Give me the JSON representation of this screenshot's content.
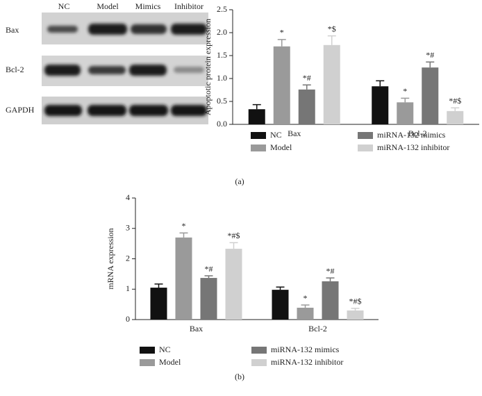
{
  "blot": {
    "columns": [
      "NC",
      "Model",
      "Mimics",
      "Inhibitor"
    ],
    "rows": [
      "Bax",
      "Bcl-2",
      "GAPDH"
    ]
  },
  "chart_data": [
    {
      "type": "bar",
      "panel": "(a)",
      "ylabel": "Apoptotic protein expression",
      "categories": [
        "Bax",
        "Bcl-2"
      ],
      "ylim": [
        0,
        2.5
      ],
      "yticks": [
        {
          "value": 0,
          "label": "0.0"
        },
        0.5,
        {
          "value": 1,
          "label": "1.0"
        },
        1.5,
        {
          "value": 2,
          "label": "2.0"
        },
        2.5
      ],
      "legend": "bottom",
      "series": [
        {
          "name": "NC",
          "color": "#111111",
          "values": [
            0.33,
            0.83
          ],
          "errors": [
            0.1,
            0.12
          ],
          "annotations": [
            null,
            null
          ]
        },
        {
          "name": "Model",
          "color": "#9a9a9a",
          "values": [
            1.7,
            0.48
          ],
          "errors": [
            0.15,
            0.09
          ],
          "annotations": [
            "*",
            "*"
          ]
        },
        {
          "name": "miRNA-132 mimics",
          "color": "#767676",
          "values": [
            0.76,
            1.24
          ],
          "errors": [
            0.1,
            0.12
          ],
          "annotations": [
            "*#",
            "*#"
          ]
        },
        {
          "name": "miRNA-132 inhibitor",
          "color": "#d0d0d0",
          "values": [
            1.73,
            0.29
          ],
          "errors": [
            0.2,
            0.07
          ],
          "annotations": [
            "*$",
            "*#$"
          ]
        }
      ]
    },
    {
      "type": "bar",
      "panel": "(b)",
      "ylabel": "mRNA expression",
      "categories": [
        "Bax",
        "Bcl-2"
      ],
      "ylim": [
        0,
        4
      ],
      "yticks": [
        0,
        1,
        2,
        3,
        4
      ],
      "legend": "bottom",
      "series": [
        {
          "name": "NC",
          "color": "#111111",
          "values": [
            1.05,
            0.98
          ],
          "errors": [
            0.12,
            0.09
          ],
          "annotations": [
            null,
            null
          ]
        },
        {
          "name": "Model",
          "color": "#9a9a9a",
          "values": [
            2.7,
            0.39
          ],
          "errors": [
            0.15,
            0.09
          ],
          "annotations": [
            "*",
            "*"
          ]
        },
        {
          "name": "miRNA-132 mimics",
          "color": "#767676",
          "values": [
            1.37,
            1.26
          ],
          "errors": [
            0.07,
            0.11
          ],
          "annotations": [
            "*#",
            "*#"
          ]
        },
        {
          "name": "miRNA-132 inhibitor",
          "color": "#d0d0d0",
          "values": [
            2.33,
            0.3
          ],
          "errors": [
            0.2,
            0.07
          ],
          "annotations": [
            "*#$",
            "*#$"
          ]
        }
      ]
    }
  ]
}
